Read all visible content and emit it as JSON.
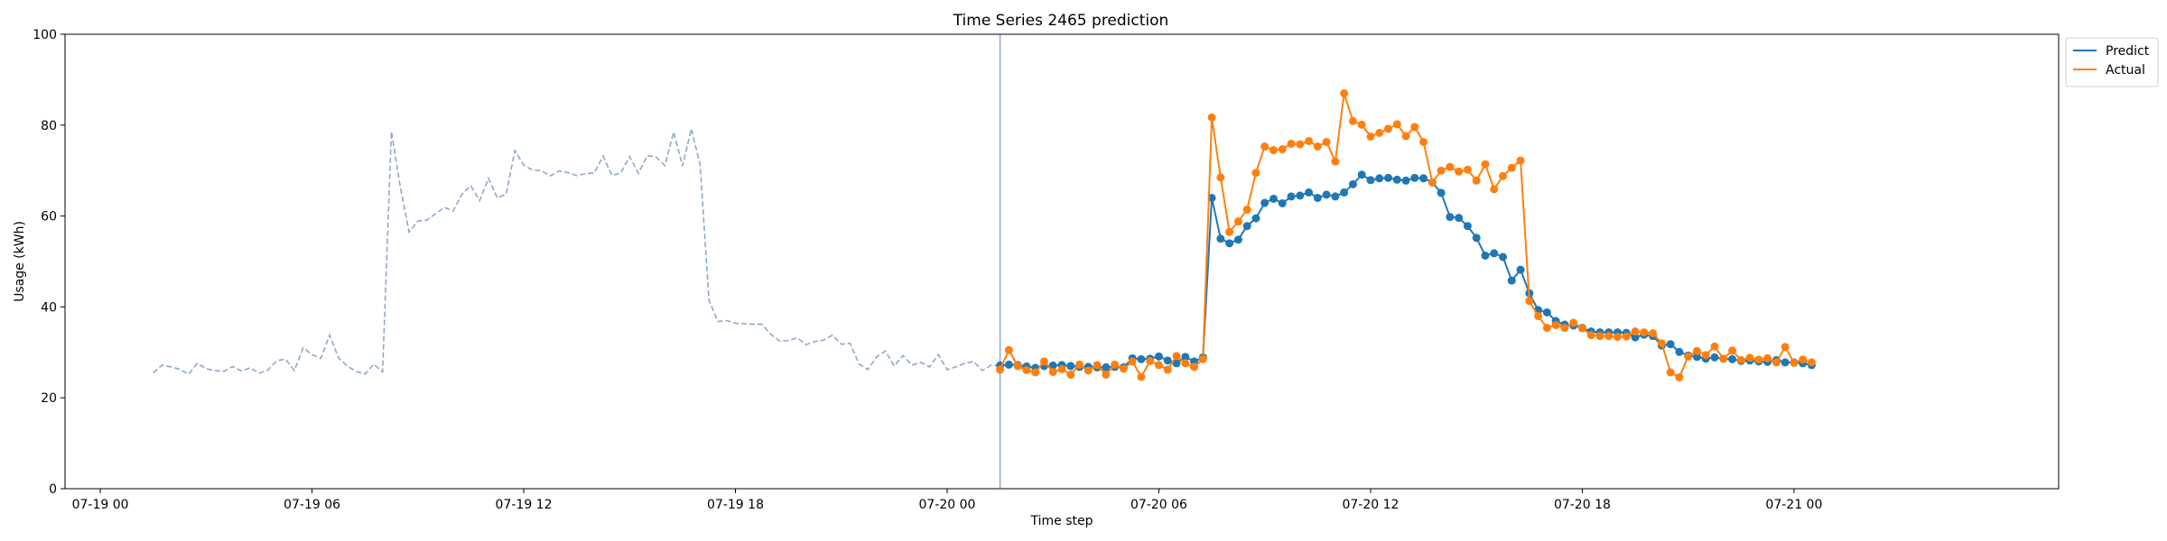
{
  "chart_data": {
    "type": "line",
    "title": "Time Series 2465 prediction",
    "xlabel": "Time step",
    "ylabel": "Usage (kWh)",
    "ylim": [
      0,
      100
    ],
    "yticks": [
      0,
      20,
      40,
      60,
      80,
      100
    ],
    "xlim": [
      "2024-07-18 23:00",
      "2024-07-21 07:30"
    ],
    "xticks": [
      {
        "t": "2024-07-19 00:00",
        "label": "07-19 00"
      },
      {
        "t": "2024-07-19 06:00",
        "label": "07-19 06"
      },
      {
        "t": "2024-07-19 12:00",
        "label": "07-19 12"
      },
      {
        "t": "2024-07-19 18:00",
        "label": "07-19 18"
      },
      {
        "t": "2024-07-20 00:00",
        "label": "07-20 00"
      },
      {
        "t": "2024-07-20 06:00",
        "label": "07-20 06"
      },
      {
        "t": "2024-07-20 12:00",
        "label": "07-20 12"
      },
      {
        "t": "2024-07-20 18:00",
        "label": "07-20 18"
      },
      {
        "t": "2024-07-21 00:00",
        "label": "07-21 00"
      }
    ],
    "grid": false,
    "legend_position": "outside-top-right",
    "split_time": "2024-07-20 01:30",
    "series": [
      {
        "name": "",
        "role": "history",
        "style": "dashed",
        "color": "#8fa8c8",
        "start": "2024-07-19 01:30",
        "interval_minutes": 15,
        "values": [
          25.5,
          27.2,
          26.8,
          26.3,
          25.2,
          27.6,
          26.4,
          26.0,
          25.8,
          26.9,
          25.9,
          26.6,
          25.4,
          26.1,
          28.2,
          28.5,
          26.0,
          31.0,
          29.5,
          28.7,
          33.8,
          28.8,
          27.0,
          25.8,
          25.2,
          27.4,
          25.7,
          78.6,
          66.5,
          56.5,
          58.9,
          59.1,
          60.5,
          61.9,
          61.1,
          64.8,
          66.7,
          63.4,
          68.3,
          64.0,
          64.8,
          74.4,
          71.2,
          70.1,
          70.0,
          68.8,
          69.9,
          69.6,
          68.9,
          69.3,
          69.5,
          73.2,
          68.9,
          69.5,
          73.1,
          69.4,
          73.3,
          73.0,
          71.1,
          78.5,
          71.0,
          79.2,
          71.2,
          41.5,
          36.8,
          37.0,
          36.4,
          36.3,
          36.2,
          36.2,
          34.0,
          32.5,
          32.6,
          33.2,
          31.7,
          32.4,
          32.7,
          33.8,
          31.8,
          32.0,
          27.5,
          26.2,
          29.0,
          30.3,
          27.0,
          29.3,
          27.2,
          27.8,
          26.8,
          29.5,
          26.2,
          26.8,
          27.6,
          28.0,
          26.0,
          27.2,
          27.1
        ]
      },
      {
        "name": "Predict",
        "role": "prediction",
        "style": "solid-markers",
        "color": "#1f77b4",
        "start": "2024-07-20 01:30",
        "interval_minutes": 15,
        "values": [
          27.1,
          27.3,
          27.2,
          26.9,
          26.6,
          27.0,
          27.1,
          27.2,
          27.0,
          26.8,
          26.8,
          26.7,
          26.7,
          26.8,
          26.7,
          28.7,
          28.5,
          28.6,
          29.1,
          28.2,
          27.6,
          29.0,
          28.0,
          28.9,
          64.0,
          55.0,
          54.0,
          54.8,
          57.8,
          59.5,
          62.9,
          63.8,
          62.8,
          64.3,
          64.5,
          65.2,
          64.0,
          64.7,
          64.3,
          65.2,
          67.0,
          69.1,
          67.9,
          68.3,
          68.4,
          68.0,
          67.8,
          68.4,
          68.3,
          67.4,
          65.1,
          59.8,
          59.6,
          57.8,
          55.2,
          51.3,
          51.8,
          51.0,
          45.8,
          48.2,
          43.0,
          39.3,
          38.8,
          36.9,
          36.1,
          35.9,
          35.4,
          34.6,
          34.4,
          34.4,
          34.4,
          34.3,
          33.3,
          33.9,
          33.6,
          31.5,
          31.8,
          30.1,
          29.3,
          29.0,
          28.6,
          28.9,
          28.6,
          28.5,
          28.1,
          28.2,
          28.0,
          27.9,
          28.3,
          27.8,
          27.8,
          27.6,
          27.2
        ]
      },
      {
        "name": "Actual",
        "role": "actual",
        "style": "solid-markers",
        "color": "#ff7f0e",
        "start": "2024-07-20 01:30",
        "interval_minutes": 15,
        "values": [
          26.2,
          30.5,
          27.0,
          26.1,
          25.6,
          28.0,
          25.7,
          26.3,
          25.1,
          27.3,
          26.0,
          27.2,
          25.1,
          27.3,
          26.4,
          28.0,
          24.6,
          28.1,
          27.2,
          26.2,
          29.2,
          27.6,
          26.8,
          28.5,
          81.7,
          68.5,
          56.5,
          58.8,
          61.4,
          69.5,
          75.3,
          74.5,
          74.7,
          75.9,
          75.8,
          76.5,
          75.3,
          76.3,
          72.0,
          87.0,
          80.9,
          80.1,
          77.5,
          78.3,
          79.2,
          80.2,
          77.6,
          79.6,
          76.3,
          67.4,
          70.0,
          70.8,
          69.8,
          70.2,
          67.8,
          71.4,
          65.9,
          68.8,
          70.6,
          72.2,
          41.3,
          38.0,
          35.4,
          36.0,
          35.4,
          36.5,
          35.3,
          33.8,
          33.6,
          33.6,
          33.4,
          33.5,
          34.6,
          34.4,
          34.2,
          32.0,
          25.6,
          24.5,
          29.1,
          30.3,
          29.4,
          31.3,
          28.6,
          30.4,
          28.3,
          28.8,
          28.4,
          28.7,
          27.8,
          31.2,
          27.7,
          28.4,
          27.8
        ]
      }
    ]
  }
}
